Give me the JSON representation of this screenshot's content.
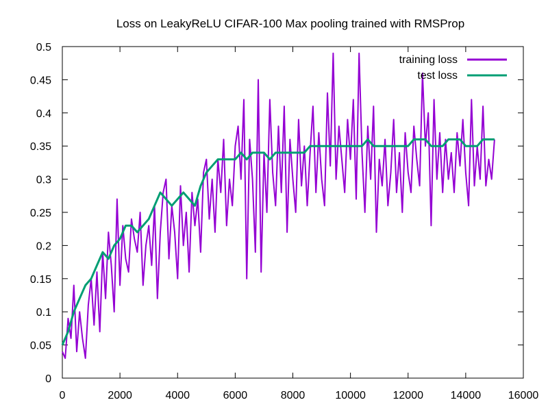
{
  "chart_data": {
    "type": "line",
    "title": "Loss on LeakyReLU CIFAR-100 Max pooling trained with RMSProp",
    "xlabel": "",
    "ylabel": "",
    "xlim": [
      0,
      16000
    ],
    "ylim": [
      0,
      0.5
    ],
    "x_ticks": [
      0,
      2000,
      4000,
      6000,
      8000,
      10000,
      12000,
      14000,
      16000
    ],
    "y_ticks": [
      0,
      0.05,
      0.1,
      0.15,
      0.2,
      0.25,
      0.3,
      0.35,
      0.4,
      0.45,
      0.5
    ],
    "x_tick_labels": [
      "0",
      "2000",
      "4000",
      "6000",
      "8000",
      "10000",
      "12000",
      "14000",
      "16000"
    ],
    "y_tick_labels": [
      "0",
      "0.05",
      "0.1",
      "0.15",
      "0.2",
      "0.25",
      "0.3",
      "0.35",
      "0.4",
      "0.45",
      "0.5"
    ],
    "grid": false,
    "legend_position": "top-right",
    "series": [
      {
        "name": "training loss",
        "color": "#9400d3",
        "x": [
          0,
          100,
          200,
          300,
          400,
          500,
          600,
          700,
          800,
          900,
          1000,
          1100,
          1200,
          1300,
          1400,
          1500,
          1600,
          1700,
          1800,
          1900,
          2000,
          2100,
          2200,
          2300,
          2400,
          2500,
          2600,
          2700,
          2800,
          2900,
          3000,
          3100,
          3200,
          3300,
          3400,
          3500,
          3600,
          3700,
          3800,
          3900,
          4000,
          4100,
          4200,
          4300,
          4400,
          4500,
          4600,
          4700,
          4800,
          4900,
          5000,
          5100,
          5200,
          5300,
          5400,
          5500,
          5600,
          5700,
          5800,
          5900,
          6000,
          6100,
          6200,
          6300,
          6400,
          6500,
          6600,
          6700,
          6800,
          6900,
          7000,
          7100,
          7200,
          7300,
          7400,
          7500,
          7600,
          7700,
          7800,
          7900,
          8000,
          8100,
          8200,
          8300,
          8400,
          8500,
          8600,
          8700,
          8800,
          8900,
          9000,
          9100,
          9200,
          9300,
          9400,
          9500,
          9600,
          9700,
          9800,
          9900,
          10000,
          10100,
          10200,
          10300,
          10400,
          10500,
          10600,
          10700,
          10800,
          10900,
          11000,
          11100,
          11200,
          11300,
          11400,
          11500,
          11600,
          11700,
          11800,
          11900,
          12000,
          12100,
          12200,
          12300,
          12400,
          12500,
          12600,
          12700,
          12800,
          12900,
          13000,
          13100,
          13200,
          13300,
          13400,
          13500,
          13600,
          13700,
          13800,
          13900,
          14000,
          14100,
          14200,
          14300,
          14400,
          14500,
          14600,
          14700,
          14800,
          14900,
          15000
        ],
        "y": [
          0.04,
          0.03,
          0.09,
          0.06,
          0.14,
          0.04,
          0.1,
          0.06,
          0.03,
          0.11,
          0.15,
          0.08,
          0.16,
          0.07,
          0.19,
          0.12,
          0.22,
          0.17,
          0.1,
          0.27,
          0.14,
          0.23,
          0.18,
          0.16,
          0.24,
          0.21,
          0.19,
          0.25,
          0.14,
          0.2,
          0.23,
          0.17,
          0.26,
          0.12,
          0.22,
          0.28,
          0.3,
          0.18,
          0.26,
          0.22,
          0.15,
          0.29,
          0.2,
          0.25,
          0.16,
          0.28,
          0.23,
          0.27,
          0.19,
          0.31,
          0.33,
          0.24,
          0.3,
          0.22,
          0.33,
          0.28,
          0.36,
          0.23,
          0.3,
          0.26,
          0.35,
          0.38,
          0.3,
          0.42,
          0.15,
          0.36,
          0.3,
          0.19,
          0.45,
          0.16,
          0.34,
          0.25,
          0.42,
          0.31,
          0.26,
          0.38,
          0.28,
          0.41,
          0.22,
          0.36,
          0.3,
          0.25,
          0.39,
          0.29,
          0.35,
          0.26,
          0.34,
          0.41,
          0.28,
          0.37,
          0.3,
          0.26,
          0.43,
          0.32,
          0.49,
          0.3,
          0.38,
          0.33,
          0.28,
          0.39,
          0.33,
          0.42,
          0.27,
          0.49,
          0.34,
          0.25,
          0.38,
          0.3,
          0.41,
          0.22,
          0.33,
          0.29,
          0.36,
          0.26,
          0.31,
          0.39,
          0.28,
          0.34,
          0.25,
          0.37,
          0.31,
          0.28,
          0.38,
          0.33,
          0.29,
          0.46,
          0.35,
          0.4,
          0.23,
          0.42,
          0.3,
          0.37,
          0.28,
          0.36,
          0.3,
          0.34,
          0.28,
          0.37,
          0.32,
          0.39,
          0.31,
          0.26,
          0.42,
          0.29,
          0.35,
          0.3,
          0.41,
          0.29,
          0.33,
          0.3,
          0.36
        ],
        "note": ""
      },
      {
        "name": "test loss",
        "color": "#009e73",
        "x": [
          0,
          200,
          400,
          600,
          800,
          1000,
          1200,
          1400,
          1600,
          1800,
          2000,
          2200,
          2400,
          2600,
          2800,
          3000,
          3200,
          3400,
          3600,
          3800,
          4000,
          4200,
          4400,
          4600,
          4800,
          5000,
          5200,
          5400,
          5600,
          5800,
          6000,
          6200,
          6400,
          6600,
          6800,
          7000,
          7200,
          7400,
          7600,
          7800,
          8000,
          8200,
          8400,
          8600,
          8800,
          9000,
          9200,
          9400,
          9600,
          9800,
          10000,
          10200,
          10400,
          10600,
          10800,
          11000,
          11200,
          11400,
          11600,
          11800,
          12000,
          12200,
          12400,
          12600,
          12800,
          13000,
          13200,
          13400,
          13600,
          13800,
          14000,
          14200,
          14400,
          14600,
          14800,
          15000
        ],
        "y": [
          0.05,
          0.07,
          0.1,
          0.12,
          0.14,
          0.15,
          0.17,
          0.19,
          0.18,
          0.2,
          0.21,
          0.23,
          0.23,
          0.22,
          0.23,
          0.24,
          0.26,
          0.28,
          0.27,
          0.26,
          0.27,
          0.28,
          0.27,
          0.26,
          0.29,
          0.31,
          0.32,
          0.33,
          0.33,
          0.33,
          0.33,
          0.34,
          0.33,
          0.34,
          0.34,
          0.34,
          0.33,
          0.34,
          0.34,
          0.34,
          0.34,
          0.34,
          0.34,
          0.35,
          0.35,
          0.35,
          0.35,
          0.35,
          0.35,
          0.35,
          0.35,
          0.35,
          0.35,
          0.36,
          0.35,
          0.35,
          0.35,
          0.35,
          0.35,
          0.35,
          0.35,
          0.36,
          0.36,
          0.36,
          0.35,
          0.35,
          0.35,
          0.36,
          0.36,
          0.36,
          0.35,
          0.35,
          0.35,
          0.36,
          0.36,
          0.36
        ]
      }
    ]
  }
}
